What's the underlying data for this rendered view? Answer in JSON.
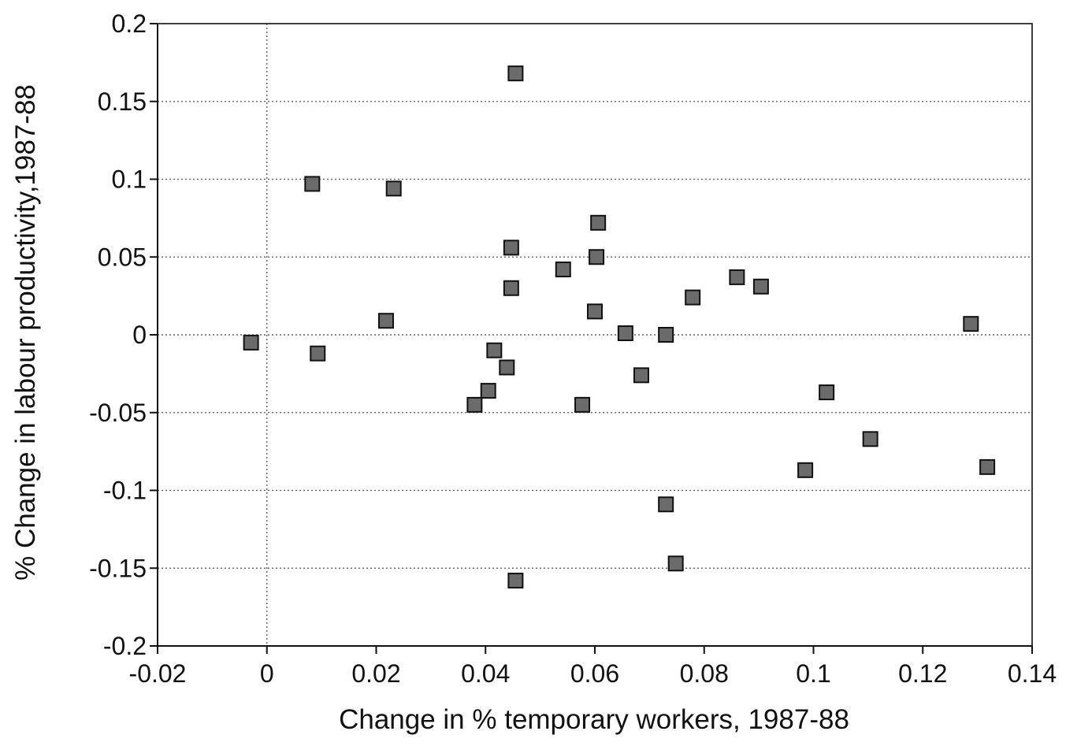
{
  "chart_data": {
    "type": "scatter",
    "title": "",
    "xlabel": "Change in % temporary workers, 1987-88",
    "ylabel": "% Change in labour productivity,1987-88",
    "xlim": [
      -0.02,
      0.14
    ],
    "ylim": [
      -0.2,
      0.2
    ],
    "x_ticks": [
      -0.02,
      0,
      0.02,
      0.04,
      0.06,
      0.08,
      0.1,
      0.12,
      0.14
    ],
    "x_tick_labels": [
      "-0.02",
      "0",
      "0.02",
      "0.04",
      "0.06",
      "0.08",
      "0.1",
      "0.12",
      "0.14"
    ],
    "y_ticks": [
      0.2,
      0.15,
      0.1,
      0.05,
      0,
      -0.05,
      -0.1,
      -0.15,
      -0.2
    ],
    "y_tick_labels": [
      "0.2",
      "0.15",
      "0.1",
      "0.05",
      "0",
      "-0.05",
      "-0.1",
      "-0.15",
      "-0.2"
    ],
    "grid": "horizontal dotted",
    "zero_reference_lines": true,
    "marker": "square",
    "marker_color": "#6b6b6b",
    "points": [
      {
        "x": 0.0455,
        "y": 0.168
      },
      {
        "x": 0.0083,
        "y": 0.097
      },
      {
        "x": 0.0232,
        "y": 0.094
      },
      {
        "x": 0.0606,
        "y": 0.072
      },
      {
        "x": 0.0447,
        "y": 0.056
      },
      {
        "x": 0.0603,
        "y": 0.05
      },
      {
        "x": 0.0542,
        "y": 0.042
      },
      {
        "x": 0.086,
        "y": 0.037
      },
      {
        "x": 0.0904,
        "y": 0.031
      },
      {
        "x": 0.0447,
        "y": 0.03
      },
      {
        "x": 0.0779,
        "y": 0.024
      },
      {
        "x": 0.06,
        "y": 0.015
      },
      {
        "x": 0.0218,
        "y": 0.009
      },
      {
        "x": 0.1288,
        "y": 0.007
      },
      {
        "x": 0.0656,
        "y": 0.001
      },
      {
        "x": 0.073,
        "y": 0.0
      },
      {
        "x": -0.0029,
        "y": -0.005
      },
      {
        "x": 0.0416,
        "y": -0.01
      },
      {
        "x": 0.0093,
        "y": -0.012
      },
      {
        "x": 0.0439,
        "y": -0.021
      },
      {
        "x": 0.0685,
        "y": -0.026
      },
      {
        "x": 0.0405,
        "y": -0.036
      },
      {
        "x": 0.1024,
        "y": -0.037
      },
      {
        "x": 0.038,
        "y": -0.045
      },
      {
        "x": 0.0577,
        "y": -0.045
      },
      {
        "x": 0.1104,
        "y": -0.067
      },
      {
        "x": 0.1318,
        "y": -0.085
      },
      {
        "x": 0.0985,
        "y": -0.087
      },
      {
        "x": 0.073,
        "y": -0.109
      },
      {
        "x": 0.0748,
        "y": -0.147
      },
      {
        "x": 0.0455,
        "y": -0.158
      }
    ]
  }
}
